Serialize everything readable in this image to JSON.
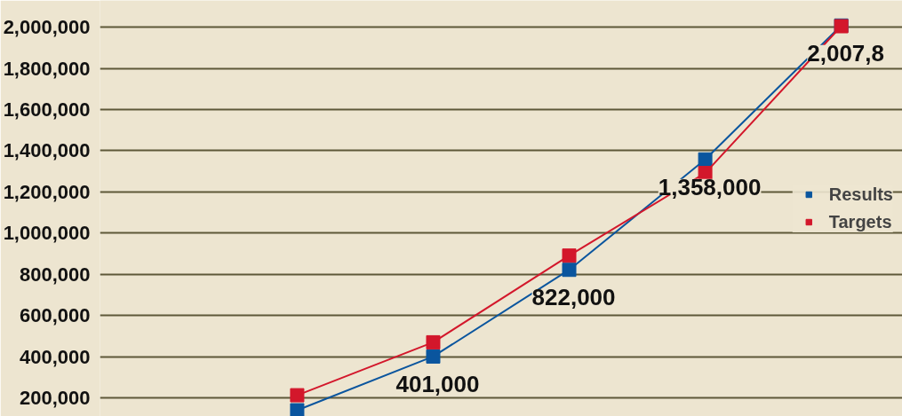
{
  "chart_data": {
    "type": "line",
    "categories": [
      null,
      null,
      null,
      null,
      null
    ],
    "series": [
      {
        "name": "Results",
        "color": "#0a559e",
        "values": [
          140000,
          401000,
          822000,
          1358000,
          2008000
        ],
        "value_labels": [
          null,
          "401,000",
          "822,000",
          "1,358,000",
          "2,007,8"
        ]
      },
      {
        "name": "Targets",
        "color": "#d3172b",
        "values": [
          213000,
          470000,
          891000,
          1292000,
          2005000
        ]
      }
    ],
    "ylim": [
      110000,
      2130000
    ],
    "yticks": [
      {
        "value": 200000,
        "label": "200,000"
      },
      {
        "value": 400000,
        "label": "400,000"
      },
      {
        "value": 600000,
        "label": "600,000"
      },
      {
        "value": 800000,
        "label": "800,000"
      },
      {
        "value": 1000000,
        "label": "1,000,000"
      },
      {
        "value": 1200000,
        "label": "1,200,000"
      },
      {
        "value": 1400000,
        "label": "1,400,000"
      },
      {
        "value": 1600000,
        "label": "1,600,000"
      },
      {
        "value": 1800000,
        "label": "1,800,000"
      },
      {
        "value": 2000000,
        "label": "2,000,000"
      }
    ],
    "grid": "y",
    "legend": "right",
    "marker": "square",
    "line_style": "solid"
  }
}
